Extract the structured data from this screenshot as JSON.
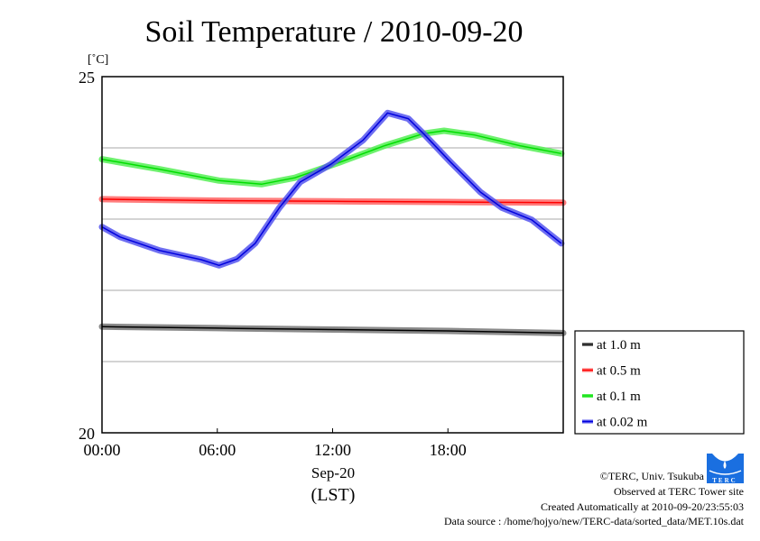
{
  "chart_data": {
    "type": "line",
    "title": "Soil Temperature / 2010-09-20",
    "ylabel": "[˚C]",
    "xlabel_date": "Sep-20",
    "xlabel": "(LST)",
    "ylim": [
      20,
      25
    ],
    "xlim": [
      0,
      24
    ],
    "y_ticks": [
      "20",
      "25"
    ],
    "y_gridlines": [
      21,
      22,
      23,
      24
    ],
    "x_ticks": [
      {
        "h": 0,
        "label": "00:00"
      },
      {
        "h": 6,
        "label": "06:00"
      },
      {
        "h": 12,
        "label": "12:00"
      },
      {
        "h": 18,
        "label": "18:00"
      }
    ],
    "legend_position": "right-bottom-outside",
    "series": [
      {
        "name": "at 1.0 m",
        "color": "#000000",
        "halo": "#777777",
        "x": [
          0,
          6,
          12,
          18,
          24
        ],
        "y": [
          21.49,
          21.47,
          21.45,
          21.43,
          21.4
        ]
      },
      {
        "name": "at 0.5 m",
        "color": "#ff0000",
        "halo": "#ff6666",
        "x": [
          0,
          6,
          12,
          18,
          24
        ],
        "y": [
          23.28,
          23.26,
          23.25,
          23.24,
          23.23
        ]
      },
      {
        "name": "at 0.1 m",
        "color": "#00dd00",
        "halo": "#55ee55",
        "x": [
          0,
          3,
          6.09,
          8.3,
          10.03,
          12.4,
          14.7,
          16.73,
          17.8,
          19.4,
          21.75,
          23.9
        ],
        "y": [
          23.84,
          23.7,
          23.54,
          23.49,
          23.58,
          23.8,
          24.03,
          24.2,
          24.24,
          24.18,
          24.03,
          23.92
        ]
      },
      {
        "name": "at 0.02 m",
        "color": "#0000dd",
        "halo": "#5555ee",
        "x": [
          0,
          0.94,
          3,
          5.16,
          6.09,
          7.03,
          7.97,
          9.23,
          10.31,
          11.91,
          13.59,
          14.86,
          15.94,
          16.73,
          18.14,
          19.69,
          20.81,
          22.36,
          23.9
        ],
        "y": [
          22.89,
          22.75,
          22.56,
          22.43,
          22.35,
          22.44,
          22.66,
          23.16,
          23.52,
          23.77,
          24.11,
          24.49,
          24.41,
          24.2,
          23.8,
          23.38,
          23.16,
          22.99,
          22.66
        ]
      }
    ]
  },
  "footer": {
    "copyright": "©TERC, Univ. Tsukuba",
    "observed": "Observed at TERC Tower site",
    "created": "Created Automatically at 2010-09-20/23:55:03",
    "source": "Data source : /home/hojyo/new/TERC-data/sorted_data/MET.10s.dat",
    "logo_text": "TERC"
  }
}
